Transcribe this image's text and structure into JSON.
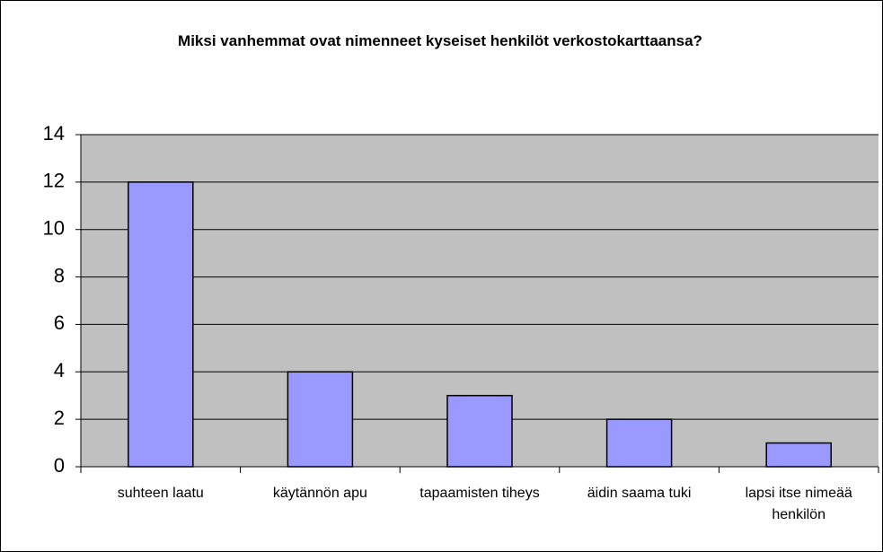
{
  "chart_data": {
    "type": "bar",
    "title": "Miksi vanhemmat ovat nimenneet kyseiset henkilöt verkostokarttaansa?",
    "categories": [
      "suhteen laatu",
      "käytännön apu",
      "tapaamisten tiheys",
      "äidin saama tuki",
      "lapsi itse nimeää henkilön"
    ],
    "values": [
      12,
      4,
      3,
      2,
      1
    ],
    "color": "#9999ff",
    "ylim": [
      0,
      14
    ],
    "yticks": [
      0,
      2,
      4,
      6,
      8,
      10,
      12,
      14
    ],
    "grid": true
  }
}
